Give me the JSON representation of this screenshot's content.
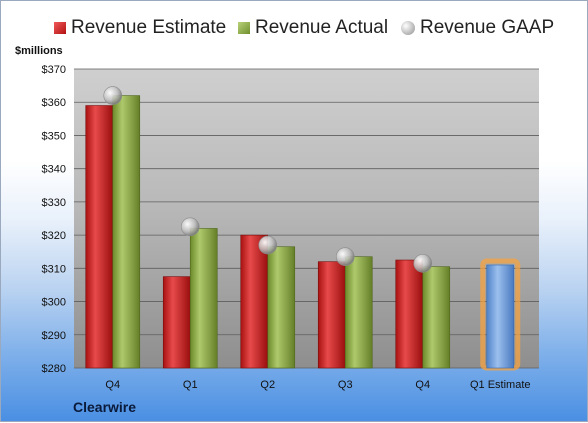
{
  "chart_data": {
    "type": "bar",
    "title": "",
    "company": "Clearwire",
    "ylabel": "$millions",
    "ylim": [
      280,
      370
    ],
    "yticks": [
      "$280",
      "$290",
      "$300",
      "$310",
      "$320",
      "$330",
      "$340",
      "$350",
      "$360",
      "$370"
    ],
    "categories": [
      "Q4",
      "Q1",
      "Q2",
      "Q3",
      "Q4",
      "Q1 Estimate"
    ],
    "legend_position": "top",
    "grid": true,
    "series": [
      {
        "name": "Revenue Estimate",
        "type": "bar",
        "values": [
          359,
          307.5,
          320,
          312,
          312.5,
          null
        ]
      },
      {
        "name": "Revenue Actual",
        "type": "bar",
        "values": [
          362,
          322,
          316.5,
          313.5,
          310.5,
          null
        ]
      },
      {
        "name": "Revenue GAAP",
        "type": "scatter",
        "values": [
          362,
          322.5,
          317,
          313.5,
          311.5,
          null
        ]
      },
      {
        "name": "Q1 Estimate",
        "type": "bar",
        "values": [
          null,
          null,
          null,
          null,
          null,
          311
        ]
      }
    ],
    "colors": {
      "estimate": "#cc1f1f",
      "actual": "#8aab43",
      "gaap": "#b5b5b5",
      "q1_estimate": "#7aa6e0",
      "q1_estimate_glow": "#f4a340"
    }
  }
}
